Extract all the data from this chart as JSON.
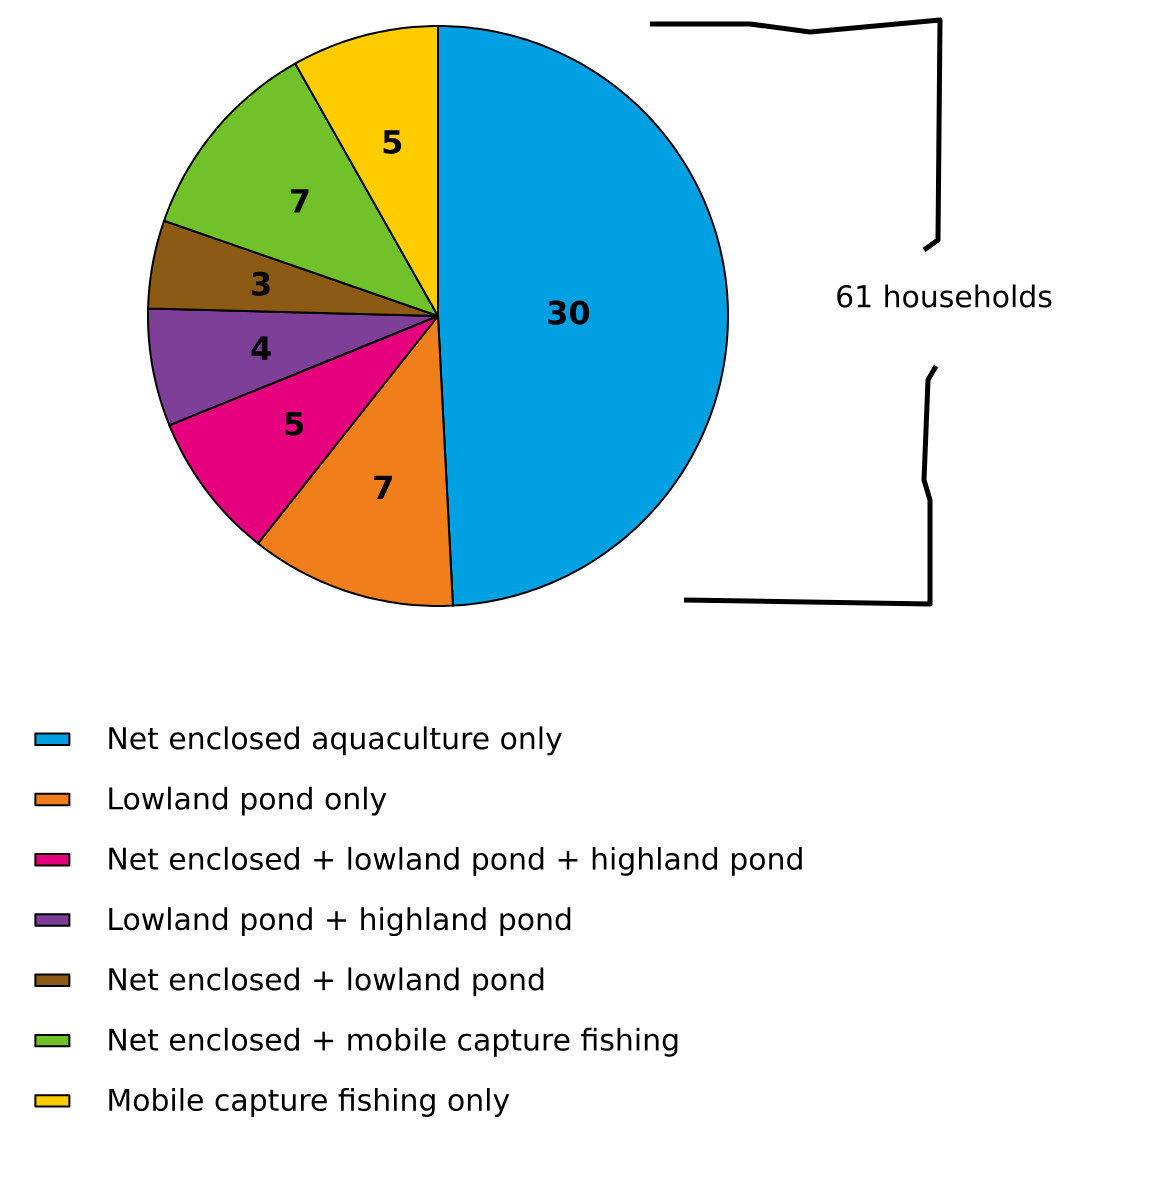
{
  "chart_data": {
    "type": "pie",
    "categories": [
      "Net enclosed aquaculture only",
      "Lowland pond only",
      "Net enclosed + lowland pond + highland pond",
      "Lowland pond + highland pond",
      "Net enclosed + lowland pond",
      "Net enclosed + mobile capture fishing",
      "Mobile capture fishing only"
    ],
    "values": [
      30,
      7,
      5,
      4,
      3,
      7,
      5
    ],
    "colors": [
      "#00a0e3",
      "#f07f1b",
      "#e6007e",
      "#7d3f98",
      "#8b5a14",
      "#70c12a",
      "#ffcc00"
    ],
    "data_labels": true,
    "legend": "bottom",
    "annotations": [
      "61 households"
    ]
  }
}
